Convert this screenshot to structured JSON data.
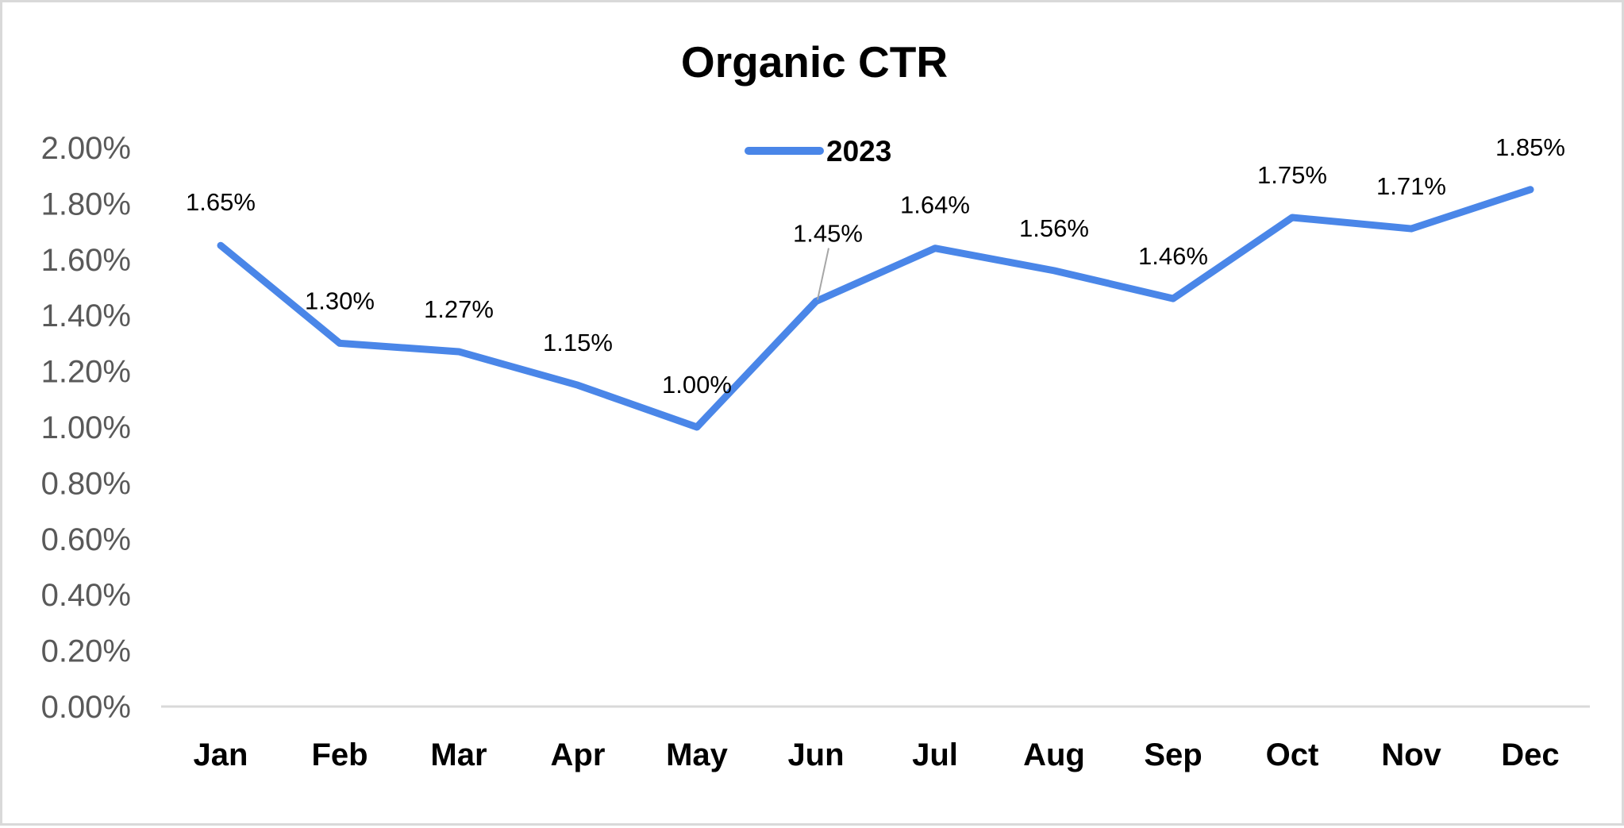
{
  "chart_data": {
    "type": "line",
    "title": "Organic CTR",
    "xlabel": "",
    "ylabel": "",
    "categories": [
      "Jan",
      "Feb",
      "Mar",
      "Apr",
      "May",
      "Jun",
      "Jul",
      "Aug",
      "Sep",
      "Oct",
      "Nov",
      "Dec"
    ],
    "series": [
      {
        "name": "2023",
        "color": "#4a86e8",
        "values": [
          1.65,
          1.3,
          1.27,
          1.15,
          1.0,
          1.45,
          1.64,
          1.56,
          1.46,
          1.75,
          1.71,
          1.85
        ],
        "labels": [
          "1.65%",
          "1.30%",
          "1.27%",
          "1.15%",
          "1.00%",
          "1.45%",
          "1.64%",
          "1.56%",
          "1.46%",
          "1.75%",
          "1.71%",
          "1.85%"
        ]
      }
    ],
    "ylim": [
      0,
      2
    ],
    "yticks": [
      0,
      0.2,
      0.4,
      0.6,
      0.8,
      1.0,
      1.2,
      1.4,
      1.6,
      1.8,
      2.0
    ],
    "ytick_labels": [
      "0.00%",
      "0.20%",
      "0.40%",
      "0.60%",
      "0.80%",
      "1.00%",
      "1.20%",
      "1.40%",
      "1.60%",
      "1.80%",
      "2.00%"
    ],
    "grid": false,
    "legend_position": "top-center"
  }
}
